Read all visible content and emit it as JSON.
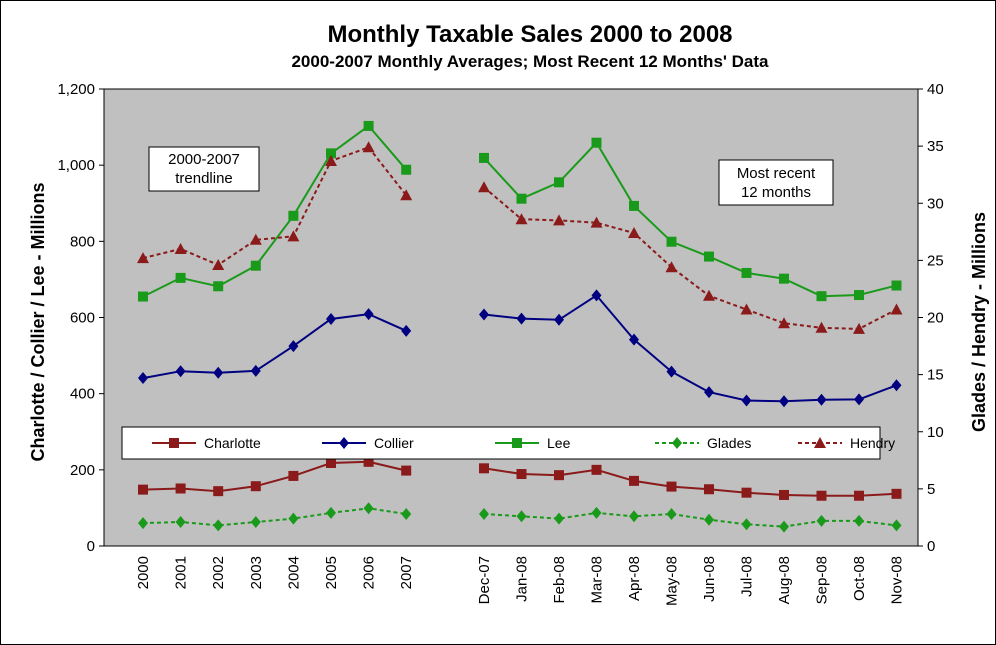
{
  "chart_data": {
    "type": "line",
    "title": "Monthly Taxable Sales 2000 to 2008",
    "subtitle": "2000-2007 Monthly Averages; Most Recent 12 Months' Data",
    "ylabel_left": "Charlotte / Collier / Lee - Millions",
    "ylabel_right": "Glades / Hendry - Millions",
    "ylim_left": [
      0,
      1200
    ],
    "ylim_right": [
      0,
      40
    ],
    "yticks_left": [
      "0",
      "200",
      "400",
      "600",
      "800",
      "1,000",
      "1,200"
    ],
    "yticks_right": [
      "0",
      "5",
      "10",
      "15",
      "20",
      "25",
      "30",
      "35",
      "40"
    ],
    "categories_annual": [
      "2000",
      "2001",
      "2002",
      "2003",
      "2004",
      "2005",
      "2006",
      "2007"
    ],
    "categories_monthly": [
      "Dec-07",
      "Jan-08",
      "Feb-08",
      "Mar-08",
      "Apr-08",
      "May-08",
      "Jun-08",
      "Jul-08",
      "Aug-08",
      "Sep-08",
      "Oct-08",
      "Nov-08"
    ],
    "annotations": {
      "left_box": [
        "2000-2007",
        "trendline"
      ],
      "right_box": [
        "Most recent",
        "12 months"
      ]
    },
    "legend_position": "bottom-center",
    "grid": false,
    "series": [
      {
        "name": "Charlotte",
        "axis": "left",
        "color": "#8B1A1A",
        "marker": "square",
        "dash": false,
        "annual": [
          148,
          151,
          144,
          157,
          184,
          218,
          221,
          198
        ],
        "monthly": [
          204,
          189,
          186,
          200,
          171,
          156,
          149,
          140,
          134,
          132,
          132,
          137
        ]
      },
      {
        "name": "Collier",
        "axis": "left",
        "color": "#000080",
        "marker": "diamond",
        "dash": false,
        "annual": [
          441,
          459,
          455,
          460,
          525,
          596,
          609,
          565
        ],
        "monthly": [
          608,
          597,
          594,
          658,
          542,
          458,
          404,
          382,
          380,
          384,
          385,
          422
        ]
      },
      {
        "name": "Lee",
        "axis": "left",
        "color": "#1A9A1A",
        "marker": "square",
        "dash": false,
        "annual": [
          655,
          704,
          682,
          736,
          867,
          1031,
          1103,
          988
        ],
        "monthly": [
          1019,
          912,
          955,
          1059,
          893,
          799,
          760,
          717,
          702,
          656,
          659,
          684
        ]
      },
      {
        "name": "Glades",
        "axis": "right",
        "color": "#1A9A1A",
        "marker": "diamond",
        "dash": true,
        "annual": [
          2.0,
          2.1,
          1.8,
          2.1,
          2.4,
          2.9,
          3.3,
          2.8
        ],
        "monthly": [
          2.8,
          2.6,
          2.4,
          2.9,
          2.6,
          2.8,
          2.3,
          1.9,
          1.7,
          2.2,
          2.2,
          1.8
        ]
      },
      {
        "name": "Hendry",
        "axis": "right",
        "color": "#8B1A1A",
        "marker": "triangle",
        "dash": true,
        "annual": [
          25.2,
          26.0,
          24.6,
          26.8,
          27.1,
          33.7,
          34.9,
          30.7
        ],
        "monthly": [
          31.4,
          28.6,
          28.5,
          28.3,
          27.4,
          24.4,
          21.9,
          20.7,
          19.5,
          19.1,
          19.0,
          20.7
        ]
      }
    ]
  }
}
